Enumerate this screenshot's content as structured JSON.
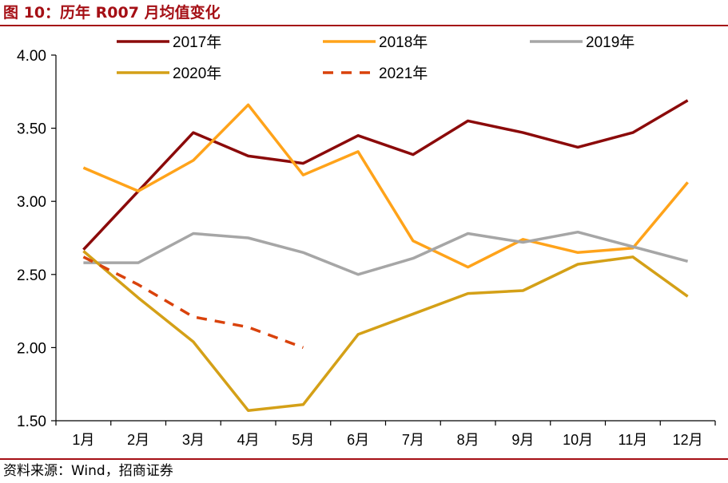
{
  "title": "图 10：历年 R007 月均值变化",
  "source": "资料来源：Wind，招商证券",
  "chart_data": {
    "type": "line",
    "title": "图 10：历年 R007 月均值变化",
    "xlabel": "",
    "ylabel": "",
    "categories": [
      "1月",
      "2月",
      "3月",
      "4月",
      "5月",
      "6月",
      "7月",
      "8月",
      "9月",
      "10月",
      "11月",
      "12月"
    ],
    "ylim": [
      1.5,
      4.0
    ],
    "yticks": [
      1.5,
      2.0,
      2.5,
      3.0,
      3.5,
      4.0
    ],
    "ytick_labels": [
      "1.50",
      "2.00",
      "2.50",
      "3.00",
      "3.50",
      "4.00"
    ],
    "grid": false,
    "legend_position": "top",
    "series": [
      {
        "name": "2017年",
        "color": "#8b0a0a",
        "dash": "solid",
        "values": [
          2.67,
          3.07,
          3.47,
          3.31,
          3.26,
          3.45,
          3.32,
          3.55,
          3.47,
          3.37,
          3.47,
          3.69
        ]
      },
      {
        "name": "2018年",
        "color": "#ffa31a",
        "dash": "solid",
        "values": [
          3.23,
          3.07,
          3.28,
          3.66,
          3.18,
          3.34,
          2.73,
          2.55,
          2.74,
          2.65,
          2.68,
          3.13
        ]
      },
      {
        "name": "2019年",
        "color": "#a6a6a6",
        "dash": "solid",
        "values": [
          2.58,
          2.58,
          2.78,
          2.75,
          2.65,
          2.5,
          2.61,
          2.78,
          2.72,
          2.79,
          2.69,
          2.59
        ]
      },
      {
        "name": "2020年",
        "color": "#d4a017",
        "dash": "solid",
        "values": [
          2.66,
          2.34,
          2.04,
          1.57,
          1.61,
          2.09,
          2.23,
          2.37,
          2.39,
          2.57,
          2.62,
          2.35
        ]
      },
      {
        "name": "2021年",
        "color": "#d9420b",
        "dash": "dashed",
        "values": [
          2.62,
          2.43,
          2.21,
          2.14,
          2.0,
          null,
          null,
          null,
          null,
          null,
          null,
          null
        ]
      }
    ]
  }
}
